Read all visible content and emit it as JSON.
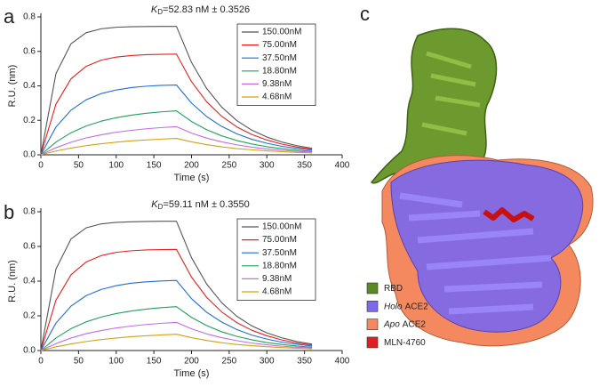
{
  "panel_labels": [
    "a",
    "b",
    "c"
  ],
  "chart_data": [
    {
      "type": "line",
      "title": [
        "K",
        "D",
        "=52.83 nM ± 0.3526"
      ],
      "x_label": "Time (s)",
      "y_label": "R.U. (nm)",
      "x": [
        0,
        20,
        40,
        60,
        80,
        100,
        120,
        140,
        160,
        180,
        200,
        220,
        240,
        260,
        280,
        300,
        320,
        340,
        360
      ],
      "xlim": [
        0,
        400
      ],
      "xticks": [
        0,
        50,
        100,
        150,
        200,
        250,
        300,
        350,
        400
      ],
      "ylim": [
        0,
        0.8
      ],
      "yticks": [
        {
          "value": 0,
          "label": "0.0"
        },
        0.2,
        0.4,
        0.6,
        0.8
      ],
      "legend": "upper right",
      "series": [
        {
          "name": "150.00nM",
          "color": "#555555",
          "values": [
            0,
            0.471,
            0.644,
            0.708,
            0.731,
            0.74,
            0.743,
            0.744,
            0.745,
            0.745,
            0.536,
            0.385,
            0.277,
            0.199,
            0.143,
            0.103,
            0.074,
            0.053,
            0.038
          ]
        },
        {
          "name": "75.00nM",
          "color": "#e8211b",
          "values": [
            0,
            0.294,
            0.441,
            0.513,
            0.549,
            0.567,
            0.576,
            0.581,
            0.583,
            0.584,
            0.424,
            0.308,
            0.224,
            0.162,
            0.118,
            0.086,
            0.062,
            0.045,
            0.033
          ]
        },
        {
          "name": "37.50nM",
          "color": "#1e6fd9",
          "values": [
            0,
            0.161,
            0.259,
            0.319,
            0.355,
            0.376,
            0.39,
            0.398,
            0.403,
            0.405,
            0.3,
            0.222,
            0.165,
            0.122,
            0.09,
            0.067,
            0.049,
            0.037,
            0.027
          ]
        },
        {
          "name": "18.80nM",
          "color": "#1ea35a",
          "values": [
            0,
            0.074,
            0.128,
            0.167,
            0.195,
            0.215,
            0.23,
            0.241,
            0.249,
            0.255,
            0.193,
            0.146,
            0.11,
            0.083,
            0.063,
            0.047,
            0.036,
            0.027,
            0.02
          ]
        },
        {
          "name": "9.38nM",
          "color": "#c66ce0",
          "values": [
            0,
            0.041,
            0.073,
            0.098,
            0.116,
            0.131,
            0.142,
            0.151,
            0.158,
            0.163,
            0.126,
            0.097,
            0.075,
            0.058,
            0.044,
            0.034,
            0.026,
            0.02,
            0.016
          ]
        },
        {
          "name": "4.68nM",
          "color": "#d4a017",
          "values": [
            0,
            0.022,
            0.039,
            0.053,
            0.064,
            0.073,
            0.081,
            0.086,
            0.091,
            0.095,
            0.075,
            0.059,
            0.046,
            0.036,
            0.029,
            0.023,
            0.018,
            0.014,
            0.011
          ]
        }
      ]
    },
    {
      "type": "line",
      "title": [
        "K",
        "D",
        "=59.11 nM ± 0.3550"
      ],
      "x_label": "Time (s)",
      "y_label": "R.U. (nm)",
      "x": [
        0,
        20,
        40,
        60,
        80,
        100,
        120,
        140,
        160,
        180,
        200,
        220,
        240,
        260,
        280,
        300,
        320,
        340,
        360
      ],
      "xlim": [
        0,
        400
      ],
      "xticks": [
        0,
        50,
        100,
        150,
        200,
        250,
        300,
        350,
        400
      ],
      "ylim": [
        0,
        0.8
      ],
      "yticks": [
        {
          "value": 0,
          "label": "0.0"
        },
        0.2,
        0.4,
        0.6,
        0.8
      ],
      "legend": "upper right",
      "series": [
        {
          "name": "150.00nM",
          "color": "#555555",
          "values": [
            0,
            0.47,
            0.643,
            0.707,
            0.73,
            0.739,
            0.742,
            0.744,
            0.745,
            0.745,
            0.535,
            0.384,
            0.276,
            0.198,
            0.142,
            0.102,
            0.073,
            0.052,
            0.037
          ]
        },
        {
          "name": "75.00nM",
          "color": "#e8211b",
          "values": [
            0,
            0.29,
            0.437,
            0.51,
            0.547,
            0.566,
            0.575,
            0.58,
            0.582,
            0.583,
            0.423,
            0.307,
            0.223,
            0.161,
            0.117,
            0.085,
            0.061,
            0.044,
            0.032
          ]
        },
        {
          "name": "37.50nM",
          "color": "#1e6fd9",
          "values": [
            0,
            0.158,
            0.256,
            0.316,
            0.352,
            0.374,
            0.388,
            0.396,
            0.401,
            0.404,
            0.299,
            0.221,
            0.164,
            0.121,
            0.089,
            0.066,
            0.048,
            0.036,
            0.026
          ]
        },
        {
          "name": "18.80nM",
          "color": "#1ea35a",
          "values": [
            0,
            0.072,
            0.126,
            0.165,
            0.193,
            0.213,
            0.228,
            0.239,
            0.247,
            0.253,
            0.191,
            0.144,
            0.108,
            0.082,
            0.062,
            0.046,
            0.035,
            0.026,
            0.019
          ]
        },
        {
          "name": "9.38nM",
          "color": "#c66ce0",
          "values": [
            0,
            0.04,
            0.072,
            0.097,
            0.115,
            0.13,
            0.141,
            0.15,
            0.157,
            0.162,
            0.125,
            0.096,
            0.074,
            0.057,
            0.043,
            0.033,
            0.025,
            0.019,
            0.015
          ]
        },
        {
          "name": "4.68nM",
          "color": "#d4a017",
          "values": [
            0,
            0.021,
            0.038,
            0.052,
            0.063,
            0.072,
            0.08,
            0.085,
            0.09,
            0.094,
            0.074,
            0.058,
            0.045,
            0.035,
            0.028,
            0.022,
            0.017,
            0.013,
            0.01
          ]
        }
      ]
    }
  ],
  "structure_legend": [
    {
      "text": "RBD",
      "color": "#5a8a22"
    },
    {
      "italic": "Holo",
      "text": "ACE2",
      "color": "#7b68ee"
    },
    {
      "italic": "Apo",
      "text": "ACE2",
      "color": "#f4895f"
    },
    {
      "text": "MLN-4760",
      "color": "#e02020"
    }
  ]
}
